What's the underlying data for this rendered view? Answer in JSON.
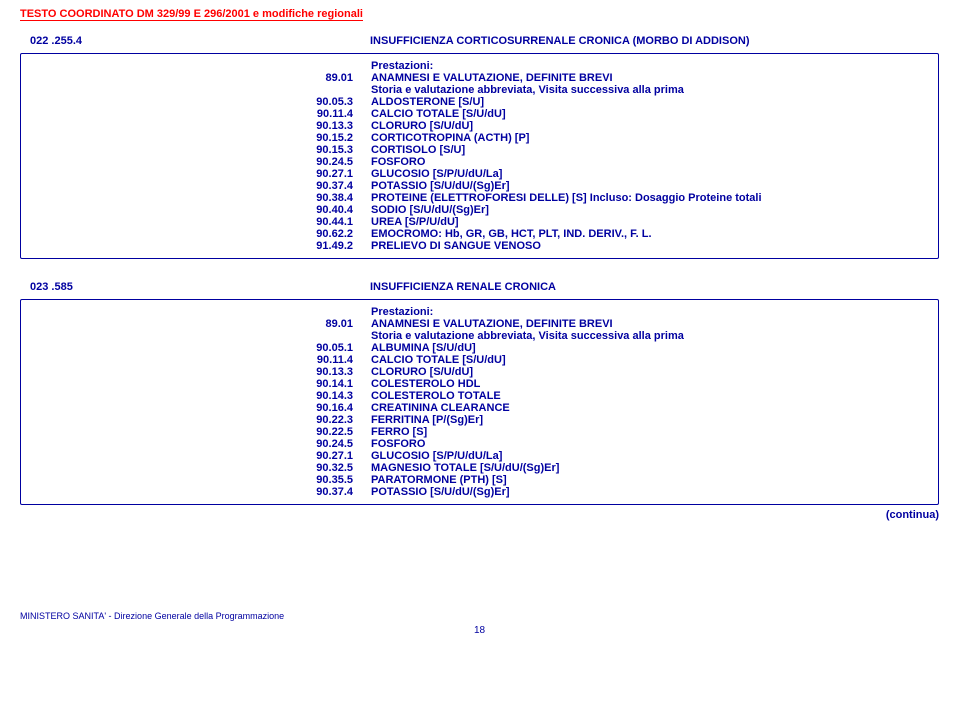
{
  "header": "TESTO COORDINATO DM 329/99 E 296/2001 e modifiche regionali",
  "section1": {
    "code": "022 .255.4",
    "title": "INSUFFICIENZA CORTICOSURRENALE CRONICA (MORBO DI ADDISON)",
    "prestazioni_label": "Prestazioni:",
    "rows": [
      {
        "c": "89.01",
        "l": "ANAMNESI E VALUTAZIONE, DEFINITE BREVI"
      },
      {
        "c": "",
        "l": "Storia e valutazione abbreviata, Visita successiva alla prima"
      },
      {
        "c": "90.05.3",
        "l": "ALDOSTERONE [S/U]"
      },
      {
        "c": "90.11.4",
        "l": "CALCIO TOTALE [S/U/dU]"
      },
      {
        "c": "90.13.3",
        "l": "CLORURO [S/U/dU]"
      },
      {
        "c": "90.15.2",
        "l": "CORTICOTROPINA (ACTH) [P]"
      },
      {
        "c": "90.15.3",
        "l": "CORTISOLO [S/U]"
      },
      {
        "c": "90.24.5",
        "l": "FOSFORO"
      },
      {
        "c": "90.27.1",
        "l": "GLUCOSIO [S/P/U/dU/La]"
      },
      {
        "c": "90.37.4",
        "l": "POTASSIO [S/U/dU/(Sg)Er]"
      },
      {
        "c": "90.38.4",
        "l": "PROTEINE (ELETTROFORESI DELLE) [S] Incluso: Dosaggio Proteine totali"
      },
      {
        "c": "90.40.4",
        "l": "SODIO [S/U/dU/(Sg)Er]"
      },
      {
        "c": "90.44.1",
        "l": "UREA [S/P/U/dU]"
      },
      {
        "c": "90.62.2",
        "l": "EMOCROMO:  Hb, GR, GB, HCT, PLT, IND. DERIV., F. L."
      },
      {
        "c": "91.49.2",
        "l": "PRELIEVO DI SANGUE VENOSO"
      }
    ]
  },
  "section2": {
    "code": "023 .585",
    "title": "INSUFFICIENZA RENALE CRONICA",
    "prestazioni_label": "Prestazioni:",
    "rows": [
      {
        "c": "89.01",
        "l": "ANAMNESI E VALUTAZIONE, DEFINITE BREVI"
      },
      {
        "c": "",
        "l": "Storia e valutazione abbreviata, Visita successiva alla prima"
      },
      {
        "c": "90.05.1",
        "l": "ALBUMINA [S/U/dU]"
      },
      {
        "c": "90.11.4",
        "l": "CALCIO TOTALE [S/U/dU]"
      },
      {
        "c": "90.13.3",
        "l": "CLORURO [S/U/dU]"
      },
      {
        "c": "90.14.1",
        "l": "COLESTEROLO HDL"
      },
      {
        "c": "90.14.3",
        "l": "COLESTEROLO TOTALE"
      },
      {
        "c": "90.16.4",
        "l": "CREATININA CLEARANCE"
      },
      {
        "c": "90.22.3",
        "l": "FERRITINA [P/(Sg)Er]"
      },
      {
        "c": "90.22.5",
        "l": "FERRO [S]"
      },
      {
        "c": "90.24.5",
        "l": "FOSFORO"
      },
      {
        "c": "90.27.1",
        "l": "GLUCOSIO [S/P/U/dU/La]"
      },
      {
        "c": "90.32.5",
        "l": "MAGNESIO TOTALE [S/U/dU/(Sg)Er]"
      },
      {
        "c": "90.35.5",
        "l": "PARATORMONE (PTH) [S]"
      },
      {
        "c": "90.37.4",
        "l": "POTASSIO [S/U/dU/(Sg)Er]"
      }
    ]
  },
  "continua": "(continua)",
  "footer": "MINISTERO SANITA' - Direzione Generale della Programmazione",
  "pagenum": "18"
}
